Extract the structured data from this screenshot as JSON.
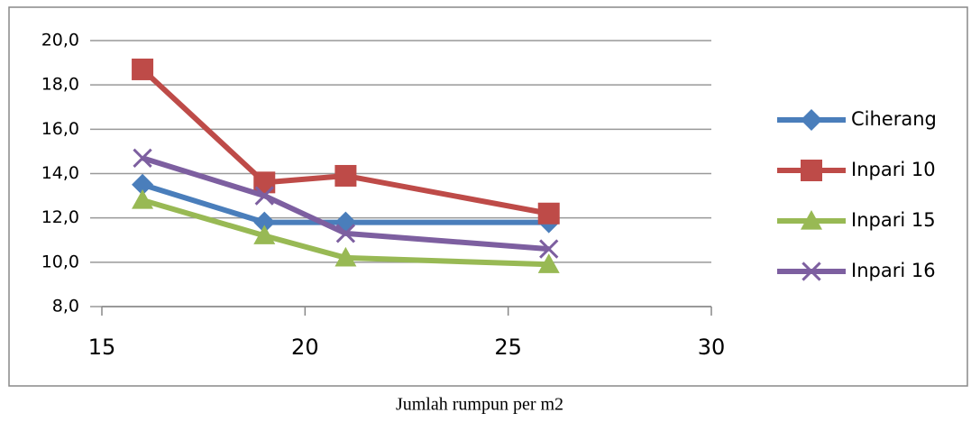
{
  "chart_data": {
    "type": "line",
    "x_label": "Jumlah rumpun per m2",
    "x": [
      16,
      19,
      21,
      26
    ],
    "series": [
      {
        "name": "Ciherang",
        "color": "#4a7ebb",
        "marker": "diamond",
        "values": [
          13.5,
          11.8,
          11.8,
          11.8
        ]
      },
      {
        "name": "Inpari 10",
        "color": "#be4b48",
        "marker": "square",
        "values": [
          18.7,
          13.6,
          13.9,
          12.2
        ]
      },
      {
        "name": "Inpari 15",
        "color": "#98b954",
        "marker": "triangle",
        "values": [
          12.8,
          11.2,
          10.2,
          9.9
        ]
      },
      {
        "name": "Inpari 16",
        "color": "#7d5fa0",
        "marker": "x",
        "values": [
          14.7,
          13.0,
          11.3,
          10.6
        ]
      }
    ],
    "xlim": [
      15,
      30
    ],
    "xticks": [
      15,
      20,
      25,
      30
    ],
    "ylim": [
      8,
      20
    ],
    "yticks": [
      {
        "value": 8,
        "label": "8,0"
      },
      {
        "value": 10,
        "label": "10,0"
      },
      {
        "value": 12,
        "label": "12,0"
      },
      {
        "value": 14,
        "label": "14,0"
      },
      {
        "value": 16,
        "label": "16,0"
      },
      {
        "value": 18,
        "label": "18,0"
      },
      {
        "value": 20,
        "label": "20,0"
      }
    ],
    "grid": true,
    "legend": "right"
  }
}
